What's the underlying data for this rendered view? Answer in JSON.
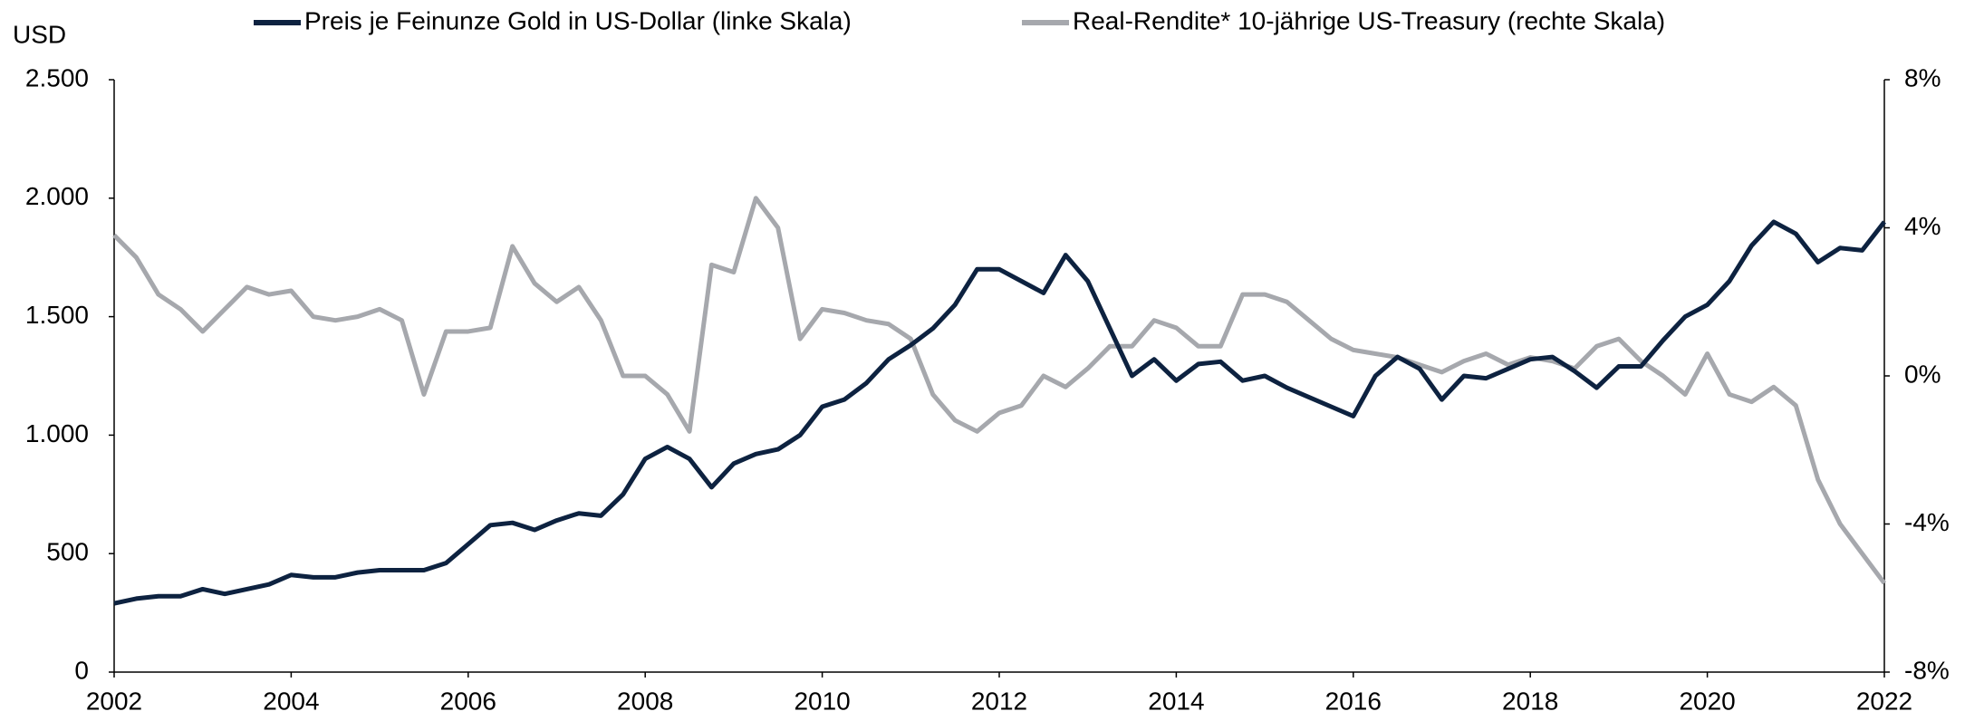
{
  "chart_data": {
    "type": "line",
    "ylabel": "USD",
    "x": [
      2002,
      2002.25,
      2002.5,
      2002.75,
      2003,
      2003.25,
      2003.5,
      2003.75,
      2004,
      2004.25,
      2004.5,
      2004.75,
      2005,
      2005.25,
      2005.5,
      2005.75,
      2006,
      2006.25,
      2006.5,
      2006.75,
      2007,
      2007.25,
      2007.5,
      2007.75,
      2008,
      2008.25,
      2008.5,
      2008.75,
      2009,
      2009.25,
      2009.5,
      2009.75,
      2010,
      2010.25,
      2010.5,
      2010.75,
      2011,
      2011.25,
      2011.5,
      2011.75,
      2012,
      2012.25,
      2012.5,
      2012.75,
      2013,
      2013.25,
      2013.5,
      2013.75,
      2014,
      2014.25,
      2014.5,
      2014.75,
      2015,
      2015.25,
      2015.5,
      2015.75,
      2016,
      2016.25,
      2016.5,
      2016.75,
      2017,
      2017.25,
      2017.5,
      2017.75,
      2018,
      2018.25,
      2018.5,
      2018.75,
      2019,
      2019.25,
      2019.5,
      2019.75,
      2020,
      2020.25,
      2020.5,
      2020.75,
      2021,
      2021.25,
      2021.5,
      2021.75,
      2022
    ],
    "series": [
      {
        "name": "Preis je Feinunze Gold in US-Dollar (linke Skala)",
        "color": "#0d2240",
        "values": [
          290,
          310,
          320,
          320,
          350,
          330,
          350,
          370,
          410,
          400,
          400,
          420,
          430,
          430,
          430,
          460,
          540,
          620,
          630,
          600,
          640,
          670,
          660,
          750,
          900,
          950,
          900,
          780,
          880,
          920,
          940,
          1000,
          1120,
          1150,
          1220,
          1320,
          1380,
          1450,
          1550,
          1700,
          1700,
          1650,
          1600,
          1760,
          1650,
          1450,
          1250,
          1320,
          1230,
          1300,
          1310,
          1230,
          1250,
          1200,
          1160,
          1120,
          1080,
          1250,
          1330,
          1280,
          1150,
          1250,
          1240,
          1280,
          1320,
          1330,
          1270,
          1200,
          1290,
          1290,
          1400,
          1500,
          1550,
          1650,
          1800,
          1900,
          1850,
          1730,
          1790,
          1780,
          1900
        ]
      },
      {
        "name": "Real-Rendite* 10-jährige US-Treasury (rechte Skala)",
        "color": "#a6a8ad",
        "axis": "y2",
        "values": [
          3.8,
          3.2,
          2.2,
          1.8,
          1.2,
          1.8,
          2.4,
          2.2,
          2.3,
          1.6,
          1.5,
          1.6,
          1.8,
          1.5,
          -0.5,
          1.2,
          1.2,
          1.3,
          3.5,
          2.5,
          2.0,
          2.4,
          1.5,
          0.0,
          0.0,
          -0.5,
          -1.5,
          3.0,
          2.8,
          4.8,
          4.0,
          1.0,
          1.8,
          1.7,
          1.5,
          1.4,
          1.0,
          -0.5,
          -1.2,
          -1.5,
          -1.0,
          -0.8,
          0.0,
          -0.3,
          0.2,
          0.8,
          0.8,
          1.5,
          1.3,
          0.8,
          0.8,
          2.2,
          2.2,
          2.0,
          1.5,
          1.0,
          0.7,
          0.6,
          0.5,
          0.3,
          0.1,
          0.4,
          0.6,
          0.3,
          0.5,
          0.4,
          0.2,
          0.8,
          1.0,
          0.4,
          0.0,
          -0.5,
          0.6,
          -0.5,
          -0.7,
          -0.3,
          -0.8,
          -2.8,
          -4.0,
          -4.8,
          -5.6
        ]
      }
    ],
    "xlim": [
      2002,
      2022
    ],
    "xticks": [
      2002,
      2004,
      2006,
      2008,
      2010,
      2012,
      2014,
      2016,
      2018,
      2020,
      2022
    ],
    "ylim": [
      0,
      2500
    ],
    "yticks": [
      0,
      {
        "value": 500,
        "label": "500"
      },
      {
        "value": 1000,
        "label": "1.000"
      },
      {
        "value": 1500,
        "label": "1.500"
      },
      {
        "value": 2000,
        "label": "2.000"
      },
      {
        "value": 2500,
        "label": "2.500"
      }
    ],
    "y2lim": [
      -8,
      8
    ],
    "y2ticks": [
      {
        "value": -8,
        "label": "-8%"
      },
      {
        "value": -4,
        "label": "-4%"
      },
      {
        "value": 0,
        "label": "0%"
      },
      {
        "value": 4,
        "label": "4%"
      },
      {
        "value": 8,
        "label": "8%"
      }
    ],
    "grid": false
  }
}
